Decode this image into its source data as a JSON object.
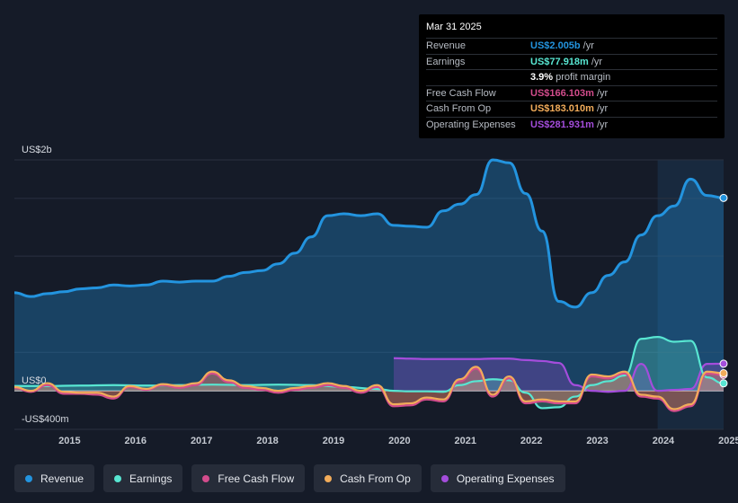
{
  "chart_data": {
    "type": "area",
    "y_axis": {
      "top_label": "US$2b",
      "zero_label": "US$0",
      "bottom_label": "-US$400m",
      "ylim": [
        -400,
        2400
      ]
    },
    "x_ticks": [
      "2015",
      "2016",
      "2017",
      "2018",
      "2019",
      "2020",
      "2021",
      "2022",
      "2023",
      "2024",
      "2025"
    ],
    "xlim": [
      2014.5,
      2025.25
    ],
    "highlight_from": 2024.25,
    "series": [
      {
        "name": "Revenue",
        "color": "#2394df",
        "points": [
          [
            2014.5,
            1020
          ],
          [
            2014.75,
            980
          ],
          [
            2015.0,
            1010
          ],
          [
            2015.25,
            1030
          ],
          [
            2015.5,
            1060
          ],
          [
            2015.75,
            1070
          ],
          [
            2016.0,
            1100
          ],
          [
            2016.25,
            1090
          ],
          [
            2016.5,
            1100
          ],
          [
            2016.75,
            1140
          ],
          [
            2017.0,
            1130
          ],
          [
            2017.25,
            1140
          ],
          [
            2017.5,
            1140
          ],
          [
            2017.75,
            1190
          ],
          [
            2018.0,
            1230
          ],
          [
            2018.25,
            1250
          ],
          [
            2018.5,
            1320
          ],
          [
            2018.75,
            1430
          ],
          [
            2019.0,
            1600
          ],
          [
            2019.25,
            1820
          ],
          [
            2019.5,
            1840
          ],
          [
            2019.75,
            1820
          ],
          [
            2020.0,
            1840
          ],
          [
            2020.25,
            1720
          ],
          [
            2020.5,
            1710
          ],
          [
            2020.75,
            1700
          ],
          [
            2021.0,
            1870
          ],
          [
            2021.25,
            1940
          ],
          [
            2021.5,
            2040
          ],
          [
            2021.75,
            2400
          ],
          [
            2022.0,
            2370
          ],
          [
            2022.25,
            2050
          ],
          [
            2022.5,
            1660
          ],
          [
            2022.75,
            930
          ],
          [
            2023.0,
            870
          ],
          [
            2023.25,
            1020
          ],
          [
            2023.5,
            1200
          ],
          [
            2023.75,
            1340
          ],
          [
            2024.0,
            1620
          ],
          [
            2024.25,
            1820
          ],
          [
            2024.5,
            1920
          ],
          [
            2024.75,
            2200
          ],
          [
            2025.0,
            2030
          ],
          [
            2025.25,
            2005
          ]
        ]
      },
      {
        "name": "Earnings",
        "color": "#58e6d2",
        "points": [
          [
            2014.5,
            50
          ],
          [
            2015.0,
            50
          ],
          [
            2015.5,
            55
          ],
          [
            2016.0,
            60
          ],
          [
            2016.5,
            55
          ],
          [
            2017.0,
            60
          ],
          [
            2017.5,
            65
          ],
          [
            2018.0,
            60
          ],
          [
            2018.5,
            65
          ],
          [
            2019.0,
            60
          ],
          [
            2019.5,
            40
          ],
          [
            2020.0,
            20
          ],
          [
            2020.25,
            0
          ],
          [
            2020.5,
            -5
          ],
          [
            2020.75,
            -5
          ],
          [
            2021.0,
            -10
          ],
          [
            2021.25,
            60
          ],
          [
            2021.5,
            100
          ],
          [
            2021.75,
            120
          ],
          [
            2022.0,
            110
          ],
          [
            2022.25,
            -20
          ],
          [
            2022.5,
            -180
          ],
          [
            2022.75,
            -170
          ],
          [
            2023.0,
            -60
          ],
          [
            2023.25,
            60
          ],
          [
            2023.5,
            100
          ],
          [
            2023.75,
            160
          ],
          [
            2024.0,
            540
          ],
          [
            2024.25,
            560
          ],
          [
            2024.5,
            510
          ],
          [
            2024.75,
            520
          ],
          [
            2025.0,
            140
          ],
          [
            2025.25,
            78
          ]
        ]
      },
      {
        "name": "Free Cash Flow",
        "color": "#d34c8c",
        "points": [
          [
            2014.5,
            30
          ],
          [
            2014.75,
            -10
          ],
          [
            2015.0,
            60
          ],
          [
            2015.25,
            -30
          ],
          [
            2015.5,
            -30
          ],
          [
            2015.75,
            -40
          ],
          [
            2016.0,
            -80
          ],
          [
            2016.25,
            40
          ],
          [
            2016.5,
            10
          ],
          [
            2016.75,
            60
          ],
          [
            2017.0,
            30
          ],
          [
            2017.25,
            60
          ],
          [
            2017.5,
            180
          ],
          [
            2017.75,
            90
          ],
          [
            2018.0,
            30
          ],
          [
            2018.25,
            10
          ],
          [
            2018.5,
            -20
          ],
          [
            2018.75,
            10
          ],
          [
            2019.0,
            30
          ],
          [
            2019.25,
            60
          ],
          [
            2019.5,
            30
          ],
          [
            2019.75,
            -20
          ],
          [
            2020.0,
            40
          ],
          [
            2020.25,
            -160
          ],
          [
            2020.5,
            -150
          ],
          [
            2020.75,
            -90
          ],
          [
            2021.0,
            -110
          ],
          [
            2021.25,
            100
          ],
          [
            2021.5,
            230
          ],
          [
            2021.75,
            -60
          ],
          [
            2022.0,
            130
          ],
          [
            2022.25,
            -130
          ],
          [
            2022.5,
            -110
          ],
          [
            2022.75,
            -130
          ],
          [
            2023.0,
            -130
          ],
          [
            2023.25,
            150
          ],
          [
            2023.5,
            130
          ],
          [
            2023.75,
            180
          ],
          [
            2024.0,
            -60
          ],
          [
            2024.25,
            -80
          ],
          [
            2024.5,
            -210
          ],
          [
            2024.75,
            -160
          ],
          [
            2025.0,
            180
          ],
          [
            2025.25,
            166
          ]
        ]
      },
      {
        "name": "Cash From Op",
        "color": "#f2ac5a",
        "points": [
          [
            2014.5,
            40
          ],
          [
            2014.75,
            0
          ],
          [
            2015.0,
            80
          ],
          [
            2015.25,
            -10
          ],
          [
            2015.5,
            -20
          ],
          [
            2015.75,
            -20
          ],
          [
            2016.0,
            -60
          ],
          [
            2016.25,
            50
          ],
          [
            2016.5,
            20
          ],
          [
            2016.75,
            70
          ],
          [
            2017.0,
            50
          ],
          [
            2017.25,
            80
          ],
          [
            2017.5,
            200
          ],
          [
            2017.75,
            110
          ],
          [
            2018.0,
            50
          ],
          [
            2018.25,
            30
          ],
          [
            2018.5,
            0
          ],
          [
            2018.75,
            30
          ],
          [
            2019.0,
            50
          ],
          [
            2019.25,
            80
          ],
          [
            2019.5,
            50
          ],
          [
            2019.75,
            0
          ],
          [
            2020.0,
            60
          ],
          [
            2020.25,
            -140
          ],
          [
            2020.5,
            -130
          ],
          [
            2020.75,
            -70
          ],
          [
            2021.0,
            -90
          ],
          [
            2021.25,
            120
          ],
          [
            2021.5,
            250
          ],
          [
            2021.75,
            -40
          ],
          [
            2022.0,
            150
          ],
          [
            2022.25,
            -110
          ],
          [
            2022.5,
            -90
          ],
          [
            2022.75,
            -110
          ],
          [
            2023.0,
            -110
          ],
          [
            2023.25,
            170
          ],
          [
            2023.5,
            150
          ],
          [
            2023.75,
            200
          ],
          [
            2024.0,
            -40
          ],
          [
            2024.25,
            -60
          ],
          [
            2024.5,
            -190
          ],
          [
            2024.75,
            -140
          ],
          [
            2025.0,
            200
          ],
          [
            2025.25,
            183
          ]
        ]
      },
      {
        "name": "Operating Expenses",
        "color": "#a44ddc",
        "points": [
          [
            2020.25,
            340
          ],
          [
            2020.5,
            335
          ],
          [
            2020.75,
            330
          ],
          [
            2021.0,
            330
          ],
          [
            2021.25,
            330
          ],
          [
            2021.5,
            330
          ],
          [
            2021.75,
            335
          ],
          [
            2022.0,
            335
          ],
          [
            2022.25,
            320
          ],
          [
            2022.5,
            310
          ],
          [
            2022.75,
            290
          ],
          [
            2023.0,
            60
          ],
          [
            2023.25,
            0
          ],
          [
            2023.5,
            -10
          ],
          [
            2023.75,
            0
          ],
          [
            2024.0,
            280
          ],
          [
            2024.25,
            0
          ],
          [
            2024.5,
            10
          ],
          [
            2024.75,
            20
          ],
          [
            2025.0,
            280
          ],
          [
            2025.25,
            282
          ]
        ]
      }
    ]
  },
  "tooltip": {
    "date": "Mar 31 2025",
    "rows": [
      {
        "label": "Revenue",
        "value": "US$2.005b",
        "unit": "/yr",
        "color": "#2394df"
      },
      {
        "label": "Earnings",
        "value": "US$77.918m",
        "unit": "/yr",
        "color": "#58e6d2"
      },
      {
        "label": "",
        "value": "3.9%",
        "unit": "profit margin",
        "color": "#ffffff"
      },
      {
        "label": "Free Cash Flow",
        "value": "US$166.103m",
        "unit": "/yr",
        "color": "#d34c8c"
      },
      {
        "label": "Cash From Op",
        "value": "US$183.010m",
        "unit": "/yr",
        "color": "#f2ac5a"
      },
      {
        "label": "Operating Expenses",
        "value": "US$281.931m",
        "unit": "/yr",
        "color": "#a44ddc"
      }
    ]
  },
  "legend": [
    {
      "label": "Revenue",
      "color": "#2394df"
    },
    {
      "label": "Earnings",
      "color": "#58e6d2"
    },
    {
      "label": "Free Cash Flow",
      "color": "#d34c8c"
    },
    {
      "label": "Cash From Op",
      "color": "#f2ac5a"
    },
    {
      "label": "Operating Expenses",
      "color": "#a44ddc"
    }
  ]
}
